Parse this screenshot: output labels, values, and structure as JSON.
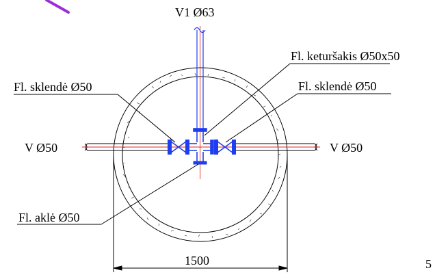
{
  "labels": {
    "top_pipe": "V1 Ø63",
    "left_pipe": "V Ø50",
    "right_pipe": "V Ø50",
    "cross_fitting": "Fl. keturšakis Ø50x50",
    "left_valve": "Fl. sklendė Ø50",
    "right_valve": "Fl. sklendė Ø50",
    "blind_flange": "Fl. aklė Ø50",
    "dimension": "1500",
    "page_number": "5"
  },
  "colors": {
    "line": "#000000",
    "fitting": "#1f3df0",
    "centerline": "#e0201c",
    "pen_mark": "#9b2fd6"
  }
}
